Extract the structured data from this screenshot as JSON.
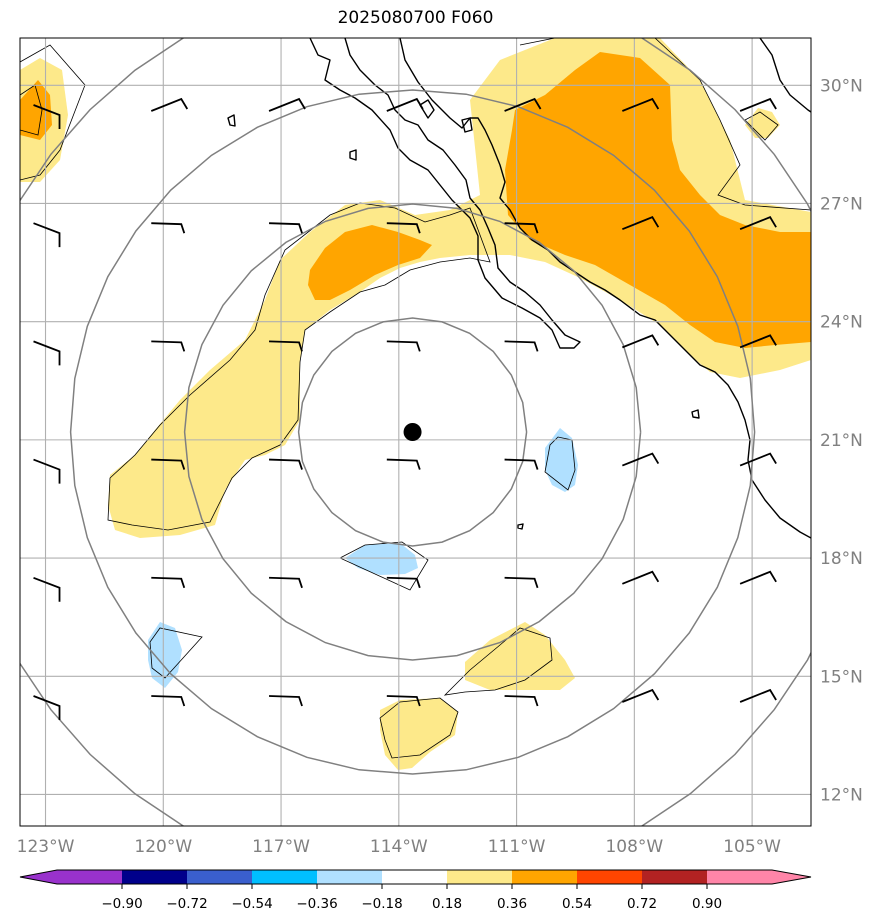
{
  "title": "2025080700 F060",
  "lon_labels": [
    "123°W",
    "120°W",
    "117°W",
    "114°W",
    "111°W",
    "108°W",
    "105°W"
  ],
  "lon_values": [
    -123,
    -120,
    -117,
    -114,
    -111,
    -108,
    -105
  ],
  "lat_labels": [
    "12°N",
    "15°N",
    "18°N",
    "21°N",
    "24°N",
    "27°N",
    "30°N"
  ],
  "lat_values": [
    12,
    15,
    18,
    21,
    24,
    27,
    30
  ],
  "extent": {
    "lon_min": -123.65,
    "lon_max": -103.5,
    "lat_min": 11.2,
    "lat_max": 31.2
  },
  "center_marker": {
    "lon": -113.65,
    "lat": 21.2
  },
  "range_rings": "concentric circles around the center marker",
  "colorbar": {
    "labels": [
      "−0.90",
      "−0.72",
      "−0.54",
      "−0.36",
      "−0.18",
      "0.18",
      "0.36",
      "0.54",
      "0.72",
      "0.90"
    ],
    "bins": [
      {
        "range": "below -0.90",
        "color": "#9932cc"
      },
      {
        "range": "-0.90 to -0.72",
        "color": "#9932cc"
      },
      {
        "range": "-0.72 to -0.54",
        "color": "#00008b"
      },
      {
        "range": "-0.54 to -0.36",
        "color": "#3a5fcd"
      },
      {
        "range": "-0.36 to -0.18",
        "color": "#00bfff"
      },
      {
        "range": "-0.18 to 0.18",
        "color": "#ffffff"
      },
      {
        "range": "0.18 to 0.36",
        "color": "#fde98a"
      },
      {
        "range": "0.36 to 0.54",
        "color": "#ffa500"
      },
      {
        "range": "0.54 to 0.72",
        "color": "#ff4500"
      },
      {
        "range": "0.72 to 0.90",
        "color": "#b22222"
      },
      {
        "range": "above 0.90",
        "color": "#ff85a8"
      }
    ],
    "extend": "both"
  },
  "colors": {
    "yellow": "#fde98a",
    "orange": "#ffa500",
    "light_blue": "#b0e0ff",
    "grid": "#b0b0b0",
    "rings": "#808080",
    "coast": "#000000"
  },
  "wind_barbs": [
    {
      "lon": -123,
      "lat": 29.5
    },
    {
      "lon": -120,
      "lat": 29.5
    },
    {
      "lon": -117,
      "lat": 29.5
    },
    {
      "lon": -114,
      "lat": 29.5
    },
    {
      "lon": -111,
      "lat": 29.5
    },
    {
      "lon": -108,
      "lat": 29.5
    },
    {
      "lon": -105,
      "lat": 29.5
    },
    {
      "lon": -123,
      "lat": 26.5
    },
    {
      "lon": -120,
      "lat": 26.5
    },
    {
      "lon": -117,
      "lat": 26.5
    },
    {
      "lon": -114,
      "lat": 26.5
    },
    {
      "lon": -111,
      "lat": 26.5
    },
    {
      "lon": -108,
      "lat": 26.5
    },
    {
      "lon": -105,
      "lat": 26.5
    },
    {
      "lon": -123,
      "lat": 23.5
    },
    {
      "lon": -120,
      "lat": 23.5
    },
    {
      "lon": -117,
      "lat": 23.5
    },
    {
      "lon": -114,
      "lat": 23.5
    },
    {
      "lon": -111,
      "lat": 23.5
    },
    {
      "lon": -108,
      "lat": 23.5
    },
    {
      "lon": -105,
      "lat": 23.5
    },
    {
      "lon": -123,
      "lat": 20.5
    },
    {
      "lon": -120,
      "lat": 20.5
    },
    {
      "lon": -117,
      "lat": 20.5
    },
    {
      "lon": -114,
      "lat": 20.5
    },
    {
      "lon": -111,
      "lat": 20.5
    },
    {
      "lon": -108,
      "lat": 20.5
    },
    {
      "lon": -105,
      "lat": 20.5
    },
    {
      "lon": -123,
      "lat": 17.5
    },
    {
      "lon": -120,
      "lat": 17.5
    },
    {
      "lon": -117,
      "lat": 17.5
    },
    {
      "lon": -114,
      "lat": 17.5
    },
    {
      "lon": -111,
      "lat": 17.5
    },
    {
      "lon": -108,
      "lat": 17.5
    },
    {
      "lon": -105,
      "lat": 17.5
    },
    {
      "lon": -123,
      "lat": 14.5
    },
    {
      "lon": -120,
      "lat": 14.5
    },
    {
      "lon": -117,
      "lat": 14.5
    },
    {
      "lon": -114,
      "lat": 14.5
    },
    {
      "lon": -111,
      "lat": 14.5
    },
    {
      "lon": -108,
      "lat": 14.5
    },
    {
      "lon": -105,
      "lat": 14.5
    }
  ]
}
